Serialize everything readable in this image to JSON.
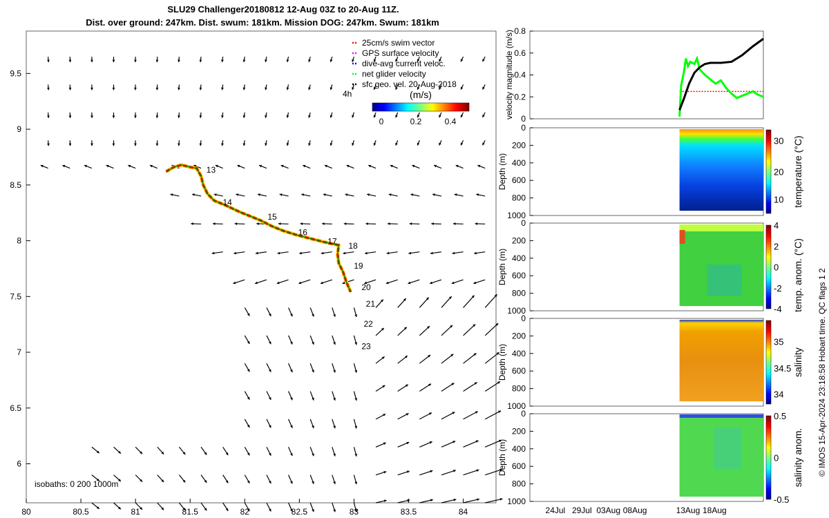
{
  "header": {
    "line1": "SLU29 Challenger20180812 12-Aug 03Z to 20-Aug 11Z.",
    "line2": "Dist. over ground: 247km. Dist. swum: 181km. Mission DOG: 247km. Swum: 181km"
  },
  "colorbar_label": "(m/s)",
  "credit": "© IMOS 15-Apr-2024 23:18:58 Hobart time. QC flags 1  2",
  "colors": {
    "red": "#ff0000",
    "magenta": "#ff00ff",
    "blue": "#0000ff",
    "green": "#00ff00",
    "black": "#000000"
  },
  "chart_data": [
    {
      "type": "scatter",
      "name": "trajectory map",
      "xlim": [
        80,
        84.3
      ],
      "ylim": [
        5.65,
        9.88
      ],
      "xticks": [
        "80",
        "80.5",
        "81",
        "81.5",
        "82",
        "82.5",
        "83",
        "83.5",
        "84"
      ],
      "yticks": [
        "6",
        "6.5",
        "7",
        "7.5",
        "8",
        "8.5",
        "9",
        "9.5"
      ],
      "legend": [
        "25cm/s swim vector",
        "GPS surface velocity",
        "dive-avg current veloc.",
        "net glider velocity",
        "sfc geo. vel. 20-Aug-2018"
      ],
      "legend_colors": [
        "#ff0000",
        "#ff00ff",
        "#0000ff",
        "#00ff00",
        "#000000"
      ],
      "colorbar_ticks": [
        "0",
        "0.2",
        "0.4"
      ],
      "isobaths_label": "isobaths: 0   200  1000m",
      "scale_label": "4h",
      "track": [
        [
          81.28,
          8.62
        ],
        [
          81.35,
          8.66
        ],
        [
          81.42,
          8.68
        ],
        [
          81.5,
          8.66
        ],
        [
          81.56,
          8.65
        ],
        [
          81.6,
          8.58
        ],
        [
          81.62,
          8.5
        ],
        [
          81.66,
          8.42
        ],
        [
          81.72,
          8.36
        ],
        [
          81.82,
          8.32
        ],
        [
          81.95,
          8.26
        ],
        [
          82.05,
          8.22
        ],
        [
          82.15,
          8.18
        ],
        [
          82.25,
          8.13
        ],
        [
          82.35,
          8.09
        ],
        [
          82.48,
          8.05
        ],
        [
          82.6,
          8.02
        ],
        [
          82.72,
          7.99
        ],
        [
          82.86,
          7.96
        ],
        [
          82.85,
          7.88
        ],
        [
          82.86,
          7.8
        ],
        [
          82.9,
          7.72
        ],
        [
          82.93,
          7.63
        ],
        [
          82.97,
          7.54
        ]
      ],
      "day_labels": [
        {
          "x": 81.63,
          "y": 8.64,
          "text": "13"
        },
        {
          "x": 81.78,
          "y": 8.35,
          "text": "14"
        },
        {
          "x": 82.19,
          "y": 8.22,
          "text": "15"
        },
        {
          "x": 82.47,
          "y": 8.08,
          "text": "16"
        },
        {
          "x": 82.74,
          "y": 8.0,
          "text": "17"
        },
        {
          "x": 82.93,
          "y": 7.96,
          "text": "18"
        },
        {
          "x": 82.98,
          "y": 7.78,
          "text": "19"
        },
        {
          "x": 83.05,
          "y": 7.59,
          "text": "20"
        },
        {
          "x": 83.09,
          "y": 7.44,
          "text": "21"
        },
        {
          "x": 83.07,
          "y": 7.26,
          "text": "22"
        },
        {
          "x": 83.05,
          "y": 7.06,
          "text": "23"
        }
      ]
    },
    {
      "type": "line",
      "name": "velocity magnitude",
      "ylabel": "velocity magnitude (m/s)",
      "ylim": [
        0,
        0.8
      ],
      "yticks": [
        "0",
        "0.2",
        "0.4",
        "0.6",
        "0.8"
      ],
      "xrange_days": [
        0,
        44
      ],
      "series": [
        {
          "name": "swim speed",
          "color": "#ff0000",
          "points": [
            [
              28.2,
              0.25
            ],
            [
              44,
              0.25
            ]
          ]
        },
        {
          "name": "net glider velocity",
          "color": "#00ff00",
          "points": [
            [
              28.2,
              0.02
            ],
            [
              28.5,
              0.3
            ],
            [
              29,
              0.42
            ],
            [
              29.4,
              0.55
            ],
            [
              29.8,
              0.48
            ],
            [
              30.2,
              0.52
            ],
            [
              31,
              0.5
            ],
            [
              31.5,
              0.55
            ],
            [
              32,
              0.45
            ],
            [
              33,
              0.4
            ],
            [
              34,
              0.36
            ],
            [
              35,
              0.32
            ],
            [
              36,
              0.35
            ],
            [
              37,
              0.28
            ],
            [
              38,
              0.23
            ],
            [
              39,
              0.19
            ],
            [
              40,
              0.21
            ],
            [
              41,
              0.23
            ],
            [
              42,
              0.25
            ],
            [
              43,
              0.22
            ],
            [
              44,
              0.2
            ]
          ]
        },
        {
          "name": "dive-avg current",
          "color": "#000000",
          "points": [
            [
              28.2,
              0.08
            ],
            [
              29,
              0.18
            ],
            [
              30,
              0.32
            ],
            [
              31,
              0.42
            ],
            [
              32,
              0.47
            ],
            [
              33,
              0.5
            ],
            [
              34,
              0.51
            ],
            [
              36,
              0.51
            ],
            [
              38,
              0.52
            ],
            [
              40,
              0.58
            ],
            [
              42,
              0.66
            ],
            [
              44,
              0.73
            ]
          ]
        }
      ]
    },
    {
      "type": "heatmap",
      "name": "temperature",
      "ylabel": "Depth (m)",
      "cbar_label": "temperature (°C)",
      "cbar_ticks": [
        "10",
        "20",
        "30"
      ],
      "yticks": [
        "0",
        "200",
        "400",
        "600",
        "800",
        "1000"
      ]
    },
    {
      "type": "heatmap",
      "name": "temperature anomaly",
      "ylabel": "Depth (m)",
      "cbar_label": "temp. anom. (°C)",
      "cbar_ticks": [
        "-4",
        "-2",
        "0",
        "2",
        "4"
      ],
      "yticks": [
        "0",
        "200",
        "400",
        "600",
        "800",
        "1000"
      ]
    },
    {
      "type": "heatmap",
      "name": "salinity",
      "ylabel": "Depth (m)",
      "cbar_label": "salinity",
      "cbar_ticks": [
        "34",
        "34.5",
        "35"
      ],
      "yticks": [
        "0",
        "200",
        "400",
        "600",
        "800",
        "1000"
      ]
    },
    {
      "type": "heatmap",
      "name": "salinity anomaly",
      "ylabel": "Depth (m)",
      "cbar_label": "salinity anom.",
      "cbar_ticks": [
        "-0.5",
        "0",
        "0.5"
      ],
      "yticks": [
        "0",
        "200",
        "400",
        "600",
        "800",
        "1000"
      ],
      "xticks": [
        "24Jul",
        "29Jul",
        "03Aug",
        "08Aug",
        "13Aug",
        "18Aug"
      ]
    }
  ]
}
